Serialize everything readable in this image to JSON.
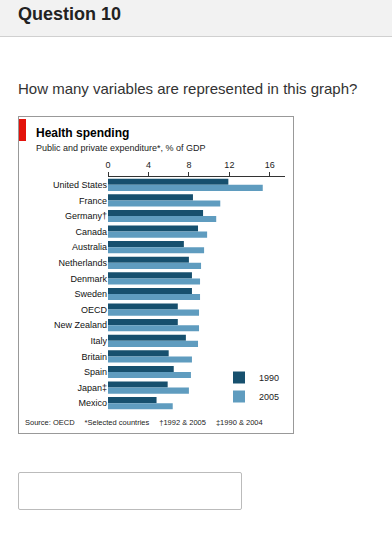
{
  "page": {
    "question_number": "Question 10",
    "question": "How many variables are represented in this graph?"
  },
  "chart_data": {
    "type": "bar",
    "orientation": "horizontal",
    "title": "Health spending",
    "subtitle": "Public and private expenditure*, % of GDP",
    "categories": [
      "United States",
      "France",
      "Germany†",
      "Canada",
      "Australia",
      "Netherlands",
      "Denmark",
      "Sweden",
      "OECD",
      "New Zealand",
      "Italy",
      "Britain",
      "Spain",
      "Japan‡",
      "Mexico"
    ],
    "series": [
      {
        "name": "1990",
        "color": "#17506e",
        "values": [
          11.9,
          8.4,
          9.4,
          8.9,
          7.5,
          8.0,
          8.3,
          8.3,
          6.9,
          6.9,
          7.7,
          6.0,
          6.5,
          5.9,
          4.8
        ]
      },
      {
        "name": "2005",
        "color": "#5f9cbf",
        "values": [
          15.3,
          11.1,
          10.7,
          9.8,
          9.5,
          9.2,
          9.1,
          9.1,
          9.0,
          9.0,
          8.9,
          8.3,
          8.2,
          8.0,
          6.4
        ]
      }
    ],
    "xlim": [
      0,
      17.5
    ],
    "xticks": [
      0,
      4,
      8,
      12,
      16
    ],
    "grid": false,
    "legend": "bottom right",
    "source": "Source: OECD",
    "notes": [
      "*Selected countries",
      "†1992 & 2005",
      "‡1990 & 2004"
    ]
  }
}
